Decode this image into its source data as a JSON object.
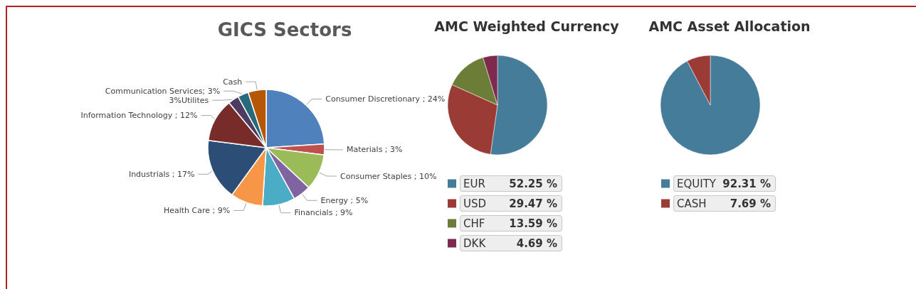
{
  "chart_data": [
    {
      "type": "pie",
      "title": "GICS Sectors",
      "categories": [
        "Consumer Discretionary ; 24%",
        "Materials ; 3%",
        "Consumer Staples ; 10%",
        "Energy ; 5%",
        "Financials ; 9%",
        "Health Care ; 9%",
        "Industrials ; 17%",
        "Information Technology ; 12%",
        "3%Utilites",
        "Communication Services; 3%",
        "Cash"
      ],
      "values": [
        24,
        3,
        10,
        5,
        9,
        9,
        17,
        12,
        3,
        3,
        5
      ],
      "colors": [
        "#4f81bd",
        "#c0504d",
        "#9bbb59",
        "#8064a2",
        "#4bacc6",
        "#f79646",
        "#2c4d75",
        "#772c2a",
        "#4d3b62",
        "#276a7c",
        "#b65708"
      ],
      "legend": false
    },
    {
      "type": "pie",
      "title": "AMC Weighted Currency",
      "categories": [
        "EUR",
        "USD",
        "CHF",
        "DKK"
      ],
      "values": [
        52.25,
        29.47,
        13.59,
        4.69
      ],
      "value_labels": [
        "52.25 %",
        "29.47 %",
        "13.59 %",
        "4.69 %"
      ],
      "colors": [
        "#447c99",
        "#9a3b36",
        "#6b7d36",
        "#7d2a4c"
      ],
      "legend": "bottom"
    },
    {
      "type": "pie",
      "title": "AMC Asset Allocation",
      "categories": [
        "EQUITY",
        "CASH"
      ],
      "values": [
        92.31,
        7.69
      ],
      "value_labels": [
        "92.31 %",
        "7.69 %"
      ],
      "colors": [
        "#447c99",
        "#9a3b36"
      ],
      "legend": "bottom"
    }
  ]
}
